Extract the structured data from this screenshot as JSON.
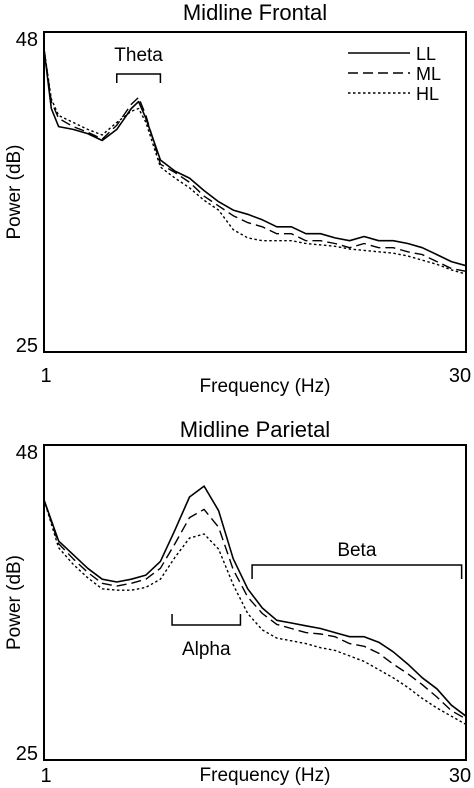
{
  "chart_data": [
    {
      "type": "line",
      "title": "Midline Frontal",
      "xlabel": "Frequency (Hz)",
      "ylabel": "Power (dB)",
      "xlim": [
        1,
        30
      ],
      "ylim": [
        25,
        48
      ],
      "xticks": [
        "1",
        "30"
      ],
      "yticks": [
        "25",
        "48"
      ],
      "legend": {
        "position": "top-right",
        "entries": [
          {
            "name": "LL",
            "dash": "solid"
          },
          {
            "name": "ML",
            "dash": "dashed"
          },
          {
            "name": "HL",
            "dash": "dotted"
          }
        ]
      },
      "annotations": [
        {
          "label": "Theta",
          "x_start": 6,
          "x_end": 9
        }
      ],
      "x": [
        1,
        1.5,
        2,
        3,
        4,
        5,
        6,
        7,
        7.5,
        8,
        9,
        10,
        11,
        12,
        13,
        14,
        15,
        16,
        17,
        18,
        19,
        20,
        21,
        22,
        23,
        24,
        25,
        26,
        27,
        28,
        29,
        30
      ],
      "series": [
        {
          "name": "LL",
          "dash": "solid",
          "values": [
            46.8,
            42.5,
            41.2,
            41.0,
            40.7,
            40.2,
            41.0,
            42.5,
            43.0,
            41.8,
            38.8,
            38.0,
            37.5,
            36.6,
            35.8,
            35.2,
            34.9,
            34.5,
            34.0,
            34.0,
            33.5,
            33.5,
            33.2,
            33.0,
            33.3,
            33.0,
            33.0,
            32.8,
            32.5,
            32.0,
            31.5,
            31.2
          ]
        },
        {
          "name": "ML",
          "dash": "dashed",
          "values": [
            46.8,
            43.0,
            41.8,
            41.2,
            40.8,
            40.3,
            41.3,
            42.8,
            43.3,
            42.0,
            38.5,
            37.9,
            37.2,
            36.2,
            35.5,
            34.8,
            34.3,
            34.0,
            33.5,
            33.5,
            33.0,
            33.0,
            32.8,
            32.5,
            32.8,
            32.5,
            32.5,
            32.2,
            32.0,
            31.5,
            31.0,
            30.8
          ]
        },
        {
          "name": "HL",
          "dash": "dotted",
          "values": [
            46.8,
            43.2,
            42.0,
            41.5,
            41.0,
            40.6,
            41.5,
            42.3,
            42.5,
            41.5,
            38.3,
            37.5,
            36.8,
            35.9,
            35.2,
            33.8,
            33.2,
            33.0,
            33.0,
            33.0,
            32.8,
            32.7,
            32.6,
            32.4,
            32.3,
            32.2,
            32.1,
            31.9,
            31.6,
            31.3,
            30.9,
            30.6
          ]
        }
      ]
    },
    {
      "type": "line",
      "title": "Midline Parietal",
      "xlabel": "Frequency (Hz)",
      "ylabel": "Power (dB)",
      "xlim": [
        1,
        30
      ],
      "ylim": [
        25,
        48
      ],
      "xticks": [
        "1",
        "30"
      ],
      "yticks": [
        "25",
        "48"
      ],
      "annotations": [
        {
          "label": "Alpha",
          "x_start": 9.8,
          "x_end": 14.5
        },
        {
          "label": "Beta",
          "x_start": 15.3,
          "x_end": 29.7
        }
      ],
      "x": [
        1,
        2,
        3,
        4,
        5,
        6,
        7,
        8,
        9,
        10,
        11,
        12,
        13,
        14,
        15,
        16,
        17,
        18,
        19,
        20,
        21,
        22,
        23,
        24,
        25,
        26,
        27,
        28,
        29,
        30
      ],
      "series": [
        {
          "name": "LL",
          "dash": "solid",
          "values": [
            44.0,
            41.0,
            40.0,
            39.0,
            38.2,
            38.0,
            38.2,
            38.5,
            39.5,
            41.8,
            44.2,
            45.0,
            43.2,
            39.7,
            37.5,
            36.1,
            35.2,
            35.0,
            34.8,
            34.6,
            34.3,
            34.0,
            34.0,
            33.6,
            32.9,
            32.0,
            31.0,
            30.2,
            29.0,
            28.2
          ]
        },
        {
          "name": "ML",
          "dash": "dashed",
          "values": [
            44.0,
            40.8,
            39.7,
            38.7,
            37.9,
            37.7,
            37.9,
            38.2,
            39.0,
            40.8,
            42.7,
            43.3,
            42.0,
            38.9,
            36.9,
            35.7,
            34.9,
            34.6,
            34.3,
            34.2,
            34.0,
            33.5,
            33.3,
            32.8,
            32.0,
            31.3,
            30.5,
            29.6,
            28.6,
            28.0
          ]
        },
        {
          "name": "HL",
          "dash": "dotted",
          "values": [
            44.0,
            40.5,
            39.3,
            38.3,
            37.5,
            37.4,
            37.4,
            37.6,
            38.2,
            39.8,
            41.2,
            41.5,
            40.4,
            37.8,
            35.7,
            34.5,
            33.9,
            33.7,
            33.5,
            33.2,
            33.0,
            32.6,
            32.2,
            31.6,
            31.0,
            30.3,
            29.5,
            28.8,
            28.2,
            27.6
          ]
        }
      ]
    }
  ]
}
